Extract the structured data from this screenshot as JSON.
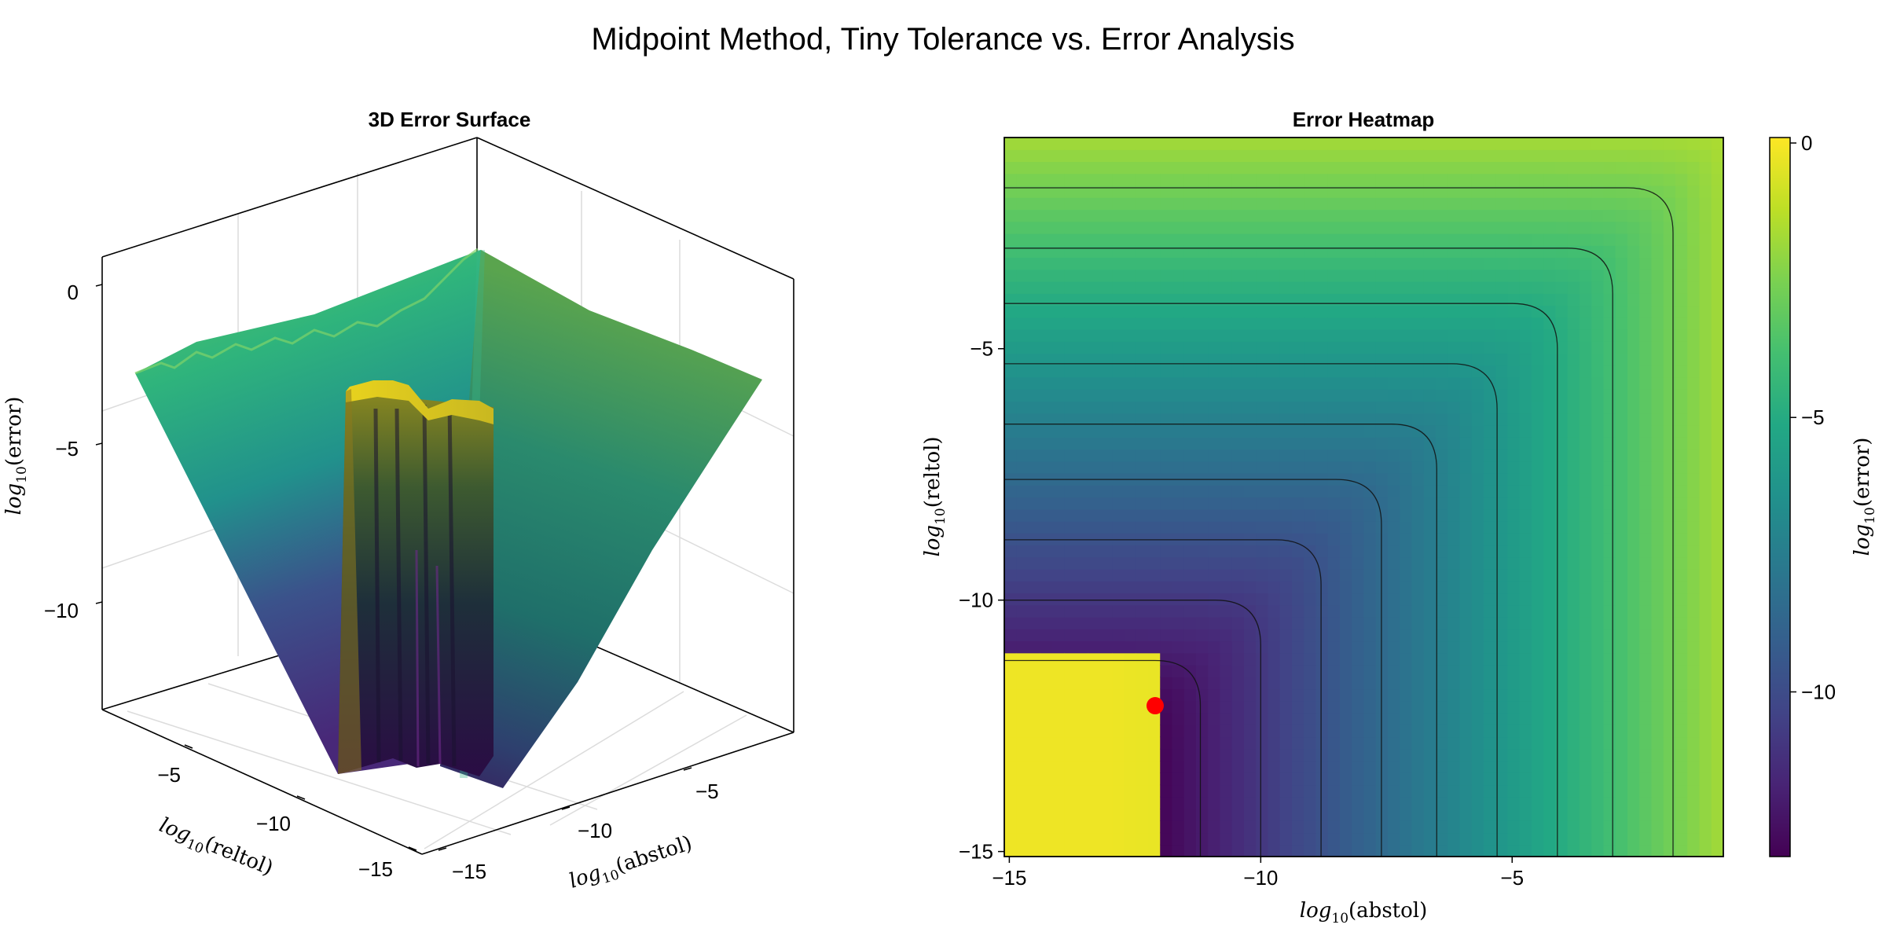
{
  "title": "Midpoint Method, Tiny Tolerance vs. Error Analysis",
  "colors": {
    "viridis": [
      "#440154",
      "#482475",
      "#414487",
      "#355f8d",
      "#2a788e",
      "#21918c",
      "#22a884",
      "#44bf70",
      "#7ad151",
      "#bddf26",
      "#fde725"
    ],
    "optimum_marker": "#ff0000"
  },
  "chart_data": [
    {
      "type": "surface3d",
      "title": "3D Error Surface",
      "xlabel": {
        "base": "log",
        "sub": "10",
        "arg": "(abstol)"
      },
      "ylabel": {
        "base": "log",
        "sub": "10",
        "arg": "(reltol)"
      },
      "zlabel": {
        "base": "log",
        "sub": "10",
        "arg": "(error)"
      },
      "x_ticks": [
        "−15",
        "−10",
        "−5"
      ],
      "y_ticks": [
        "−5",
        "−10",
        "−15"
      ],
      "z_ticks": [
        "0",
        "−5",
        "−10"
      ],
      "xlim": [
        -15,
        -1
      ],
      "ylim": [
        -15,
        -1
      ],
      "zlim": [
        -13,
        0
      ]
    },
    {
      "type": "heatmap",
      "title": "Error Heatmap",
      "xlabel": {
        "base": "log",
        "sub": "10",
        "arg": "(abstol)"
      },
      "ylabel": {
        "base": "log",
        "sub": "10",
        "arg": "(reltol)"
      },
      "x_ticks": [
        "−15",
        "−10",
        "−5"
      ],
      "y_ticks": [
        "−5",
        "−10",
        "−15"
      ],
      "x_tick_values": [
        -15,
        -10,
        -5
      ],
      "y_tick_values": [
        -5,
        -10,
        -15
      ],
      "xlim": [
        -15.1,
        -0.8
      ],
      "ylim": [
        -15.1,
        -0.8
      ],
      "colorbar": {
        "label": {
          "base": "log",
          "sub": "10",
          "arg": "(error)"
        },
        "ticks": [
          "0",
          "−5",
          "−10"
        ],
        "tick_values": [
          0,
          -5,
          -10
        ],
        "range": [
          -13.0,
          0.1
        ]
      },
      "contour_levels": [
        -2.7,
        -3.9,
        -5.0,
        -6.2,
        -7.4,
        -8.5,
        -9.7,
        -10.9,
        -12.1
      ],
      "optimum": {
        "x": -12.1,
        "y": -12.1
      },
      "saturated_region": {
        "x_max": -12.0,
        "y_max": -11.0,
        "value": -0.2
      }
    }
  ]
}
